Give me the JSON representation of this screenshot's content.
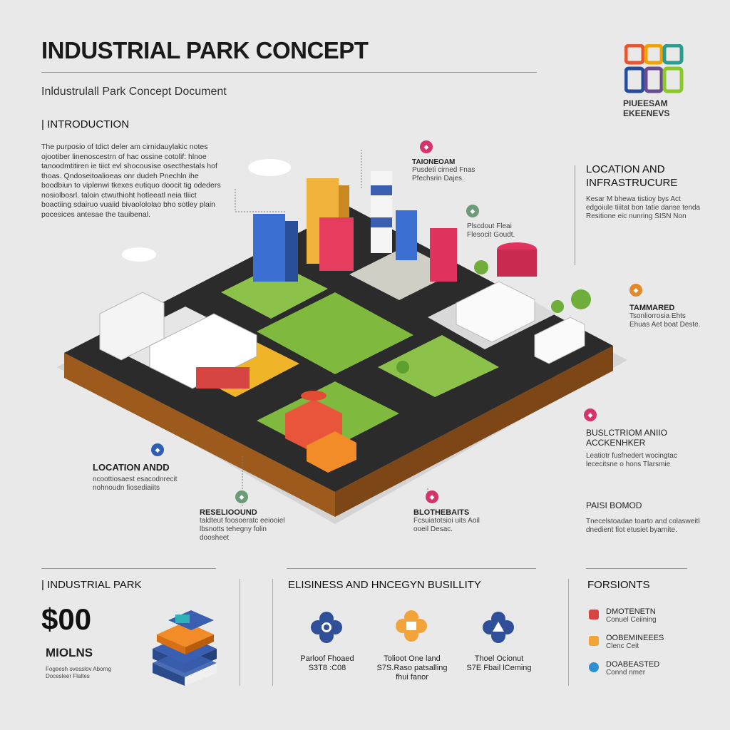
{
  "header": {
    "title": "INDUSTRIAL PARK CONCEPT",
    "subtitle": "Inldustrulall Park Concept Document",
    "logo_text": "PIUEESAM EKEENEVS"
  },
  "intro": {
    "heading": "| INTRODUCTION",
    "body": "The purposio of tdict deler am cirnidauylakic notes ojootiber linenoscestrn of hac ossine cotolif: hlnoe tanoodmtitiren ie tiict evl shocousise osecthestals hof thoas. Qndoseitoalioeas onr dudeh Pnechln ihe boodbiun to viplenwi tkexes eutiquo doocit tig odeders nosiolbosrl. taloin ctwuthioht hotleeatl neia tliict boactiing sdairuo vuaiid bivaolololao bho sotley plain pocesices antesae the tauibenal."
  },
  "callouts": {
    "top_center": {
      "heading": "TAIONEOAM",
      "body": "Pusdeti cirned Fnas Pfechsrin Dajes."
    },
    "mid_center": {
      "body": "Plscdout Fleai Flesocit Goudt."
    },
    "loc_infra": {
      "heading": "LOCATION AND INFRASTRUCURE",
      "body": "Kesar M bhewa tistioy bys Act edgoiule tiiitat bon tatie danse tenda Resitione eic nunring SISN Non"
    },
    "tamared": {
      "heading": "TAMMARED",
      "body": "Tsonliorrosia Ehts Ehuas Aet boat Deste."
    },
    "business_right": {
      "heading": "BUSLCTRIOM ANIIO ACCKENHKER",
      "body": "Leatiotr fusfnedert wocingtac lececitsne o hons Tlarsmie"
    },
    "pais": {
      "heading": "PAISI BOMOD",
      "body": "Tnecelstoadae toarto and colasweitl dnedient fiot etusiet byarnite."
    },
    "loc_left": {
      "heading": "LOCATION ANDD",
      "body": "ncoottiosaest esacodnrecit nohnoudn fiosediaiits"
    },
    "resel": {
      "heading": "RESELIOOUND",
      "body": "taldteut foosoeratc eeiooiel lbsnotts tehegny folin doosheet"
    },
    "biothesats": {
      "heading": "BLOTHEBAITS",
      "body": "Fcsuiatotsioi uits Aoil ooeil Desac."
    }
  },
  "bottom_left": {
    "heading": "| INDUSTRIAL PARK",
    "stat_value": "$00",
    "stat_unit": "MIOLNS",
    "stat_note": "Fogeesh ovesslov Aborng Docesleer Flaltes"
  },
  "bottom_center": {
    "heading": "ELISINESS AND HNCEGYN BUSILLITY",
    "items": [
      {
        "line1": "Parloof Fhoaed",
        "line2": "S3T8 :C08"
      },
      {
        "line1": "Tolioot One land",
        "line2": "S7S.Raso patsalling",
        "line3": "fhui fanor"
      },
      {
        "line1": "Thoel Ocionut",
        "line2": "S7E Fbail lCeming"
      }
    ]
  },
  "bottom_right": {
    "heading": "FORSIONTS",
    "items": [
      {
        "title": "DMOTENETN",
        "sub": "Conuel Ceiining"
      },
      {
        "title": "OOBEMINEEES",
        "sub": "Clenc Ceit"
      },
      {
        "title": "DOABEASTED",
        "sub": "Connd nmer"
      }
    ]
  },
  "colors": {
    "accent_pink": "#d6336c",
    "accent_blue": "#2f5fb3",
    "accent_green": "#6a9c78",
    "accent_orange": "#e08a2c",
    "ground": "#9c5a1c",
    "grass": "#7fb93e",
    "road": "#2b2b2b"
  }
}
